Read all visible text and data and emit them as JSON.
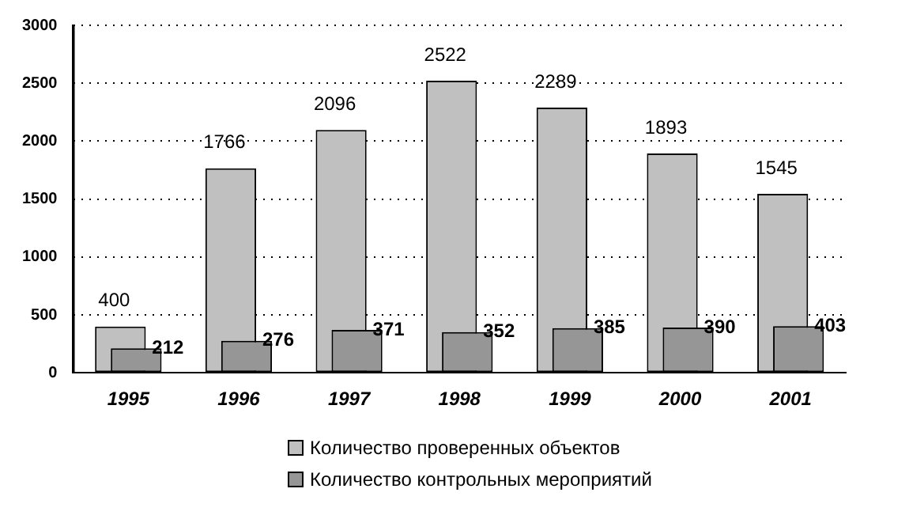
{
  "chart_data": {
    "type": "bar",
    "categories": [
      "1995",
      "1996",
      "1997",
      "1998",
      "1999",
      "2000",
      "2001"
    ],
    "series": [
      {
        "name": "Количество проверенных объектов",
        "color": "#c0c0c0",
        "values": [
          400,
          1766,
          2096,
          2522,
          2289,
          1893,
          1545
        ]
      },
      {
        "name": "Количество контрольных мероприятий",
        "color": "#969696",
        "values": [
          212,
          276,
          371,
          352,
          385,
          390,
          403
        ]
      }
    ],
    "ylim": [
      0,
      3000
    ],
    "yticks": [
      0,
      500,
      1000,
      1500,
      2000,
      2500,
      3000
    ],
    "grid": "y",
    "legend": "bottom",
    "data_labels": true
  }
}
